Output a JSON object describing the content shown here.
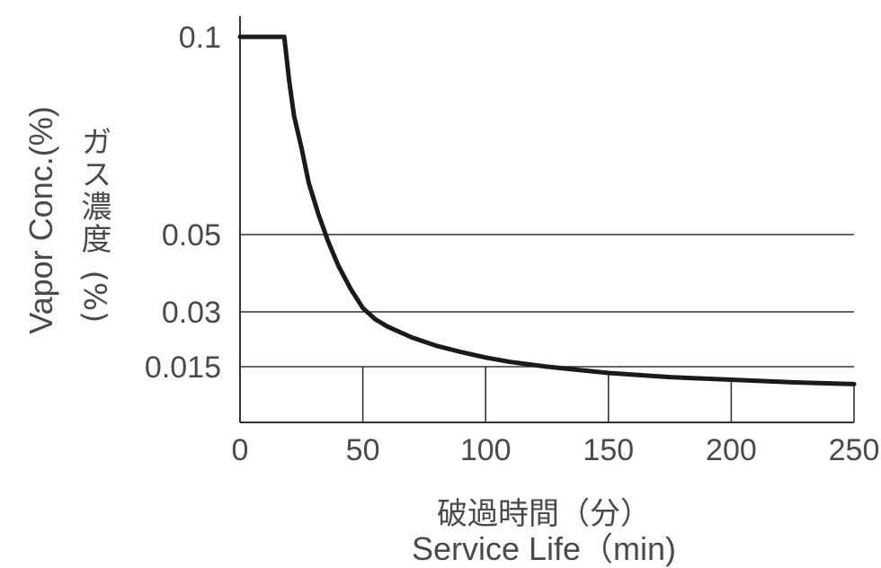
{
  "chart_data": {
    "type": "line",
    "xlabel_ja": "破過時間（分）",
    "xlabel_en": "Service Life（min)",
    "ylabel_en": "Vapor Conc.(%)",
    "ylabel_ja": "ガス濃度",
    "ylabel_unit": "(%)",
    "xlim": [
      0,
      250
    ],
    "x_ticks": [
      "0",
      "50",
      "100",
      "150",
      "200",
      "250"
    ],
    "y_ticks": [
      {
        "label": "0.1",
        "value": 0.1
      },
      {
        "label": "0.05",
        "value": 0.05
      },
      {
        "label": "0.03",
        "value": 0.03
      },
      {
        "label": "0.015",
        "value": 0.015
      }
    ],
    "grid": true,
    "series": [
      {
        "x": [
          0,
          18,
          20,
          22,
          25,
          28,
          32,
          36,
          40,
          45,
          50,
          55,
          60,
          70,
          80,
          90,
          100,
          110,
          125,
          150,
          175,
          200,
          225,
          250
        ],
        "y": [
          0.1,
          0.1,
          0.089,
          0.08,
          0.072,
          0.063,
          0.055,
          0.048,
          0.042,
          0.036,
          0.031,
          0.028,
          0.026,
          0.023,
          0.0207,
          0.019,
          0.0175,
          0.0163,
          0.015,
          0.0133,
          0.0122,
          0.0115,
          0.0108,
          0.0103
        ]
      }
    ]
  }
}
